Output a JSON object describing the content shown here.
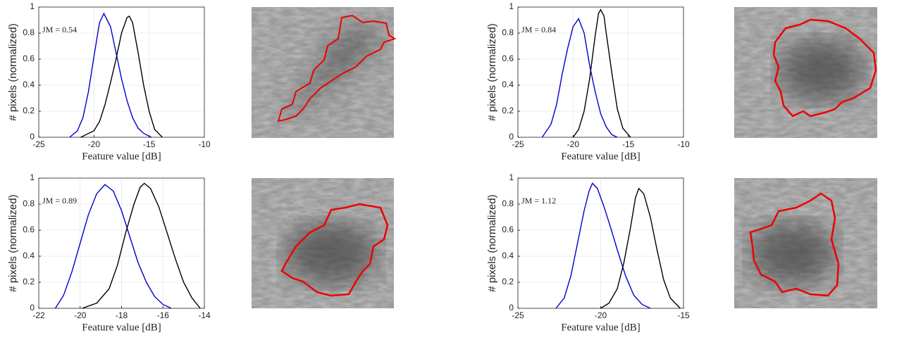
{
  "chart_data": [
    {
      "type": "line",
      "annotation": "JM = 0.54",
      "xlabel": "Feature value [dB]",
      "ylabel": "# pixels (normalized)",
      "xlim": [
        -25,
        -10
      ],
      "xticks": [
        -25,
        -20,
        -15,
        -10
      ],
      "ylim": [
        0,
        1
      ],
      "yticks": [
        0,
        0.2,
        0.4,
        0.6,
        0.8,
        1
      ],
      "grid": true,
      "series": [
        {
          "color": "#0000cc",
          "x": [
            -22.2,
            -21.5,
            -21,
            -20.5,
            -20,
            -19.5,
            -19.1,
            -18.5,
            -18,
            -17.5,
            -17,
            -16.5,
            -16,
            -15.5,
            -14.8
          ],
          "values": [
            0,
            0.05,
            0.15,
            0.35,
            0.62,
            0.88,
            0.95,
            0.85,
            0.65,
            0.45,
            0.28,
            0.15,
            0.07,
            0.03,
            0
          ]
        },
        {
          "color": "#000000",
          "x": [
            -21.2,
            -20,
            -19.5,
            -19,
            -18.5,
            -18,
            -17.5,
            -17,
            -16.8,
            -16.5,
            -16,
            -15.5,
            -15,
            -14.5,
            -13.8
          ],
          "values": [
            0,
            0.05,
            0.12,
            0.25,
            0.42,
            0.6,
            0.8,
            0.92,
            0.93,
            0.88,
            0.65,
            0.4,
            0.2,
            0.06,
            0
          ]
        }
      ]
    },
    {
      "type": "line",
      "annotation": "JM = 0.84",
      "xlabel": "Feature value [dB]",
      "ylabel": "# pixels (normalized)",
      "xlim": [
        -25,
        -10
      ],
      "xticks": [
        -25,
        -20,
        -15,
        -10
      ],
      "ylim": [
        0,
        1
      ],
      "yticks": [
        0,
        0.2,
        0.4,
        0.6,
        0.8,
        1
      ],
      "grid": true,
      "series": [
        {
          "color": "#0000cc",
          "x": [
            -22.8,
            -22,
            -21.5,
            -21,
            -20.5,
            -20,
            -19.5,
            -19,
            -18.5,
            -18,
            -17.5,
            -17,
            -16.5,
            -16
          ],
          "values": [
            0,
            0.1,
            0.25,
            0.48,
            0.68,
            0.85,
            0.91,
            0.8,
            0.55,
            0.35,
            0.18,
            0.08,
            0.02,
            0
          ]
        },
        {
          "color": "#000000",
          "x": [
            -20,
            -19.5,
            -19,
            -18.5,
            -18,
            -17.7,
            -17.5,
            -17.2,
            -17,
            -16.5,
            -16,
            -15.5,
            -14.8
          ],
          "values": [
            0,
            0.06,
            0.2,
            0.45,
            0.78,
            0.95,
            0.98,
            0.93,
            0.8,
            0.5,
            0.22,
            0.07,
            0
          ]
        }
      ]
    },
    {
      "type": "line",
      "annotation": "JM = 0.89",
      "xlabel": "Feature value [dB]",
      "ylabel": "# pixels (normalized)",
      "xlim": [
        -22,
        -14
      ],
      "xticks": [
        -22,
        -20,
        -18,
        -16,
        -14
      ],
      "ylim": [
        0,
        1
      ],
      "yticks": [
        0,
        0.2,
        0.4,
        0.6,
        0.8,
        1
      ],
      "grid": true,
      "series": [
        {
          "color": "#0000cc",
          "x": [
            -21.2,
            -20.8,
            -20.4,
            -20,
            -19.6,
            -19.2,
            -18.8,
            -18.4,
            -18,
            -17.6,
            -17.2,
            -16.8,
            -16.4,
            -16,
            -15.6
          ],
          "values": [
            0,
            0.1,
            0.28,
            0.5,
            0.72,
            0.88,
            0.95,
            0.9,
            0.75,
            0.55,
            0.35,
            0.2,
            0.09,
            0.03,
            0
          ]
        },
        {
          "color": "#000000",
          "x": [
            -19.9,
            -19.2,
            -18.6,
            -18.2,
            -17.8,
            -17.4,
            -17.1,
            -16.9,
            -16.6,
            -16.2,
            -15.8,
            -15.4,
            -15,
            -14.6,
            -14.2
          ],
          "values": [
            0,
            0.04,
            0.15,
            0.33,
            0.58,
            0.8,
            0.93,
            0.96,
            0.92,
            0.78,
            0.58,
            0.38,
            0.2,
            0.08,
            0
          ]
        }
      ]
    },
    {
      "type": "line",
      "annotation": "JM = 1.12",
      "xlabel": "Feature value [dB]",
      "ylabel": "# pixels (normalized)",
      "xlim": [
        -25,
        -15
      ],
      "xticks": [
        -25,
        -20,
        -15
      ],
      "ylim": [
        0,
        1
      ],
      "yticks": [
        0,
        0.2,
        0.4,
        0.6,
        0.8,
        1
      ],
      "grid": true,
      "series": [
        {
          "color": "#0000cc",
          "x": [
            -22.7,
            -22.2,
            -21.8,
            -21.4,
            -21,
            -20.7,
            -20.5,
            -20.2,
            -19.8,
            -19.4,
            -19,
            -18.5,
            -18,
            -17.5,
            -17
          ],
          "values": [
            0,
            0.08,
            0.25,
            0.5,
            0.75,
            0.9,
            0.96,
            0.92,
            0.78,
            0.62,
            0.45,
            0.25,
            0.1,
            0.03,
            0
          ]
        },
        {
          "color": "#000000",
          "x": [
            -20,
            -19.5,
            -19,
            -18.6,
            -18.2,
            -17.9,
            -17.7,
            -17.4,
            -17,
            -16.6,
            -16.2,
            -15.8,
            -15.2
          ],
          "values": [
            0,
            0.04,
            0.15,
            0.35,
            0.62,
            0.85,
            0.92,
            0.88,
            0.7,
            0.45,
            0.22,
            0.08,
            0
          ]
        }
      ]
    }
  ]
}
